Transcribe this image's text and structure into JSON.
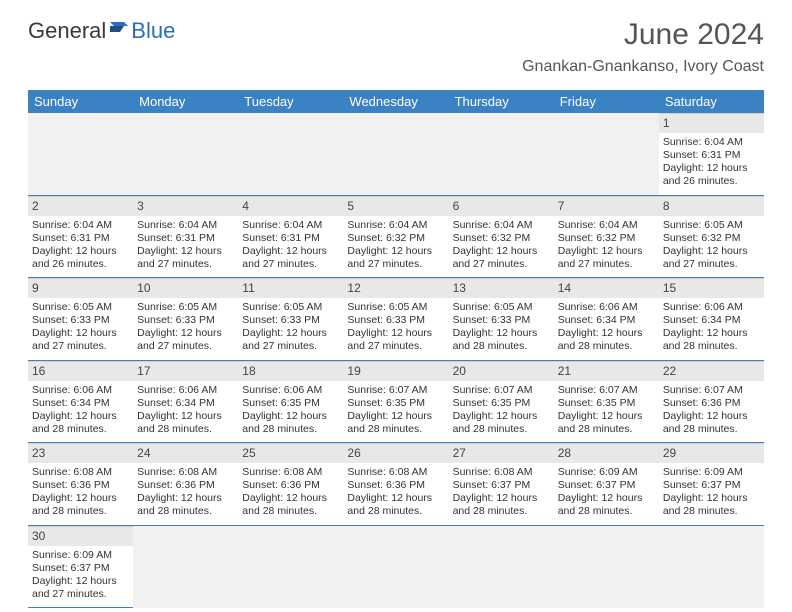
{
  "logo": {
    "general": "General",
    "blue": "Blue"
  },
  "title": {
    "month": "June 2024",
    "location": "Gnankan-Gnankanso, Ivory Coast"
  },
  "colors": {
    "header_bg": "#3b82c4",
    "header_text": "#ffffff",
    "daynum_bg": "#e8e8e8",
    "border": "#3b82c4",
    "text": "#333333",
    "logo_blue": "#2a6db8",
    "logo_gray": "#3a3a3a"
  },
  "typography": {
    "title_fontsize": 30,
    "location_fontsize": 16,
    "weekday_fontsize": 13,
    "daynum_fontsize": 12,
    "body_fontsize": 10.5
  },
  "weekdays": [
    "Sunday",
    "Monday",
    "Tuesday",
    "Wednesday",
    "Thursday",
    "Friday",
    "Saturday"
  ],
  "weeks": [
    [
      null,
      null,
      null,
      null,
      null,
      null,
      {
        "n": "1",
        "sr": "Sunrise: 6:04 AM",
        "ss": "Sunset: 6:31 PM",
        "d1": "Daylight: 12 hours",
        "d2": "and 26 minutes."
      }
    ],
    [
      {
        "n": "2",
        "sr": "Sunrise: 6:04 AM",
        "ss": "Sunset: 6:31 PM",
        "d1": "Daylight: 12 hours",
        "d2": "and 26 minutes."
      },
      {
        "n": "3",
        "sr": "Sunrise: 6:04 AM",
        "ss": "Sunset: 6:31 PM",
        "d1": "Daylight: 12 hours",
        "d2": "and 27 minutes."
      },
      {
        "n": "4",
        "sr": "Sunrise: 6:04 AM",
        "ss": "Sunset: 6:31 PM",
        "d1": "Daylight: 12 hours",
        "d2": "and 27 minutes."
      },
      {
        "n": "5",
        "sr": "Sunrise: 6:04 AM",
        "ss": "Sunset: 6:32 PM",
        "d1": "Daylight: 12 hours",
        "d2": "and 27 minutes."
      },
      {
        "n": "6",
        "sr": "Sunrise: 6:04 AM",
        "ss": "Sunset: 6:32 PM",
        "d1": "Daylight: 12 hours",
        "d2": "and 27 minutes."
      },
      {
        "n": "7",
        "sr": "Sunrise: 6:04 AM",
        "ss": "Sunset: 6:32 PM",
        "d1": "Daylight: 12 hours",
        "d2": "and 27 minutes."
      },
      {
        "n": "8",
        "sr": "Sunrise: 6:05 AM",
        "ss": "Sunset: 6:32 PM",
        "d1": "Daylight: 12 hours",
        "d2": "and 27 minutes."
      }
    ],
    [
      {
        "n": "9",
        "sr": "Sunrise: 6:05 AM",
        "ss": "Sunset: 6:33 PM",
        "d1": "Daylight: 12 hours",
        "d2": "and 27 minutes."
      },
      {
        "n": "10",
        "sr": "Sunrise: 6:05 AM",
        "ss": "Sunset: 6:33 PM",
        "d1": "Daylight: 12 hours",
        "d2": "and 27 minutes."
      },
      {
        "n": "11",
        "sr": "Sunrise: 6:05 AM",
        "ss": "Sunset: 6:33 PM",
        "d1": "Daylight: 12 hours",
        "d2": "and 27 minutes."
      },
      {
        "n": "12",
        "sr": "Sunrise: 6:05 AM",
        "ss": "Sunset: 6:33 PM",
        "d1": "Daylight: 12 hours",
        "d2": "and 27 minutes."
      },
      {
        "n": "13",
        "sr": "Sunrise: 6:05 AM",
        "ss": "Sunset: 6:33 PM",
        "d1": "Daylight: 12 hours",
        "d2": "and 28 minutes."
      },
      {
        "n": "14",
        "sr": "Sunrise: 6:06 AM",
        "ss": "Sunset: 6:34 PM",
        "d1": "Daylight: 12 hours",
        "d2": "and 28 minutes."
      },
      {
        "n": "15",
        "sr": "Sunrise: 6:06 AM",
        "ss": "Sunset: 6:34 PM",
        "d1": "Daylight: 12 hours",
        "d2": "and 28 minutes."
      }
    ],
    [
      {
        "n": "16",
        "sr": "Sunrise: 6:06 AM",
        "ss": "Sunset: 6:34 PM",
        "d1": "Daylight: 12 hours",
        "d2": "and 28 minutes."
      },
      {
        "n": "17",
        "sr": "Sunrise: 6:06 AM",
        "ss": "Sunset: 6:34 PM",
        "d1": "Daylight: 12 hours",
        "d2": "and 28 minutes."
      },
      {
        "n": "18",
        "sr": "Sunrise: 6:06 AM",
        "ss": "Sunset: 6:35 PM",
        "d1": "Daylight: 12 hours",
        "d2": "and 28 minutes."
      },
      {
        "n": "19",
        "sr": "Sunrise: 6:07 AM",
        "ss": "Sunset: 6:35 PM",
        "d1": "Daylight: 12 hours",
        "d2": "and 28 minutes."
      },
      {
        "n": "20",
        "sr": "Sunrise: 6:07 AM",
        "ss": "Sunset: 6:35 PM",
        "d1": "Daylight: 12 hours",
        "d2": "and 28 minutes."
      },
      {
        "n": "21",
        "sr": "Sunrise: 6:07 AM",
        "ss": "Sunset: 6:35 PM",
        "d1": "Daylight: 12 hours",
        "d2": "and 28 minutes."
      },
      {
        "n": "22",
        "sr": "Sunrise: 6:07 AM",
        "ss": "Sunset: 6:36 PM",
        "d1": "Daylight: 12 hours",
        "d2": "and 28 minutes."
      }
    ],
    [
      {
        "n": "23",
        "sr": "Sunrise: 6:08 AM",
        "ss": "Sunset: 6:36 PM",
        "d1": "Daylight: 12 hours",
        "d2": "and 28 minutes."
      },
      {
        "n": "24",
        "sr": "Sunrise: 6:08 AM",
        "ss": "Sunset: 6:36 PM",
        "d1": "Daylight: 12 hours",
        "d2": "and 28 minutes."
      },
      {
        "n": "25",
        "sr": "Sunrise: 6:08 AM",
        "ss": "Sunset: 6:36 PM",
        "d1": "Daylight: 12 hours",
        "d2": "and 28 minutes."
      },
      {
        "n": "26",
        "sr": "Sunrise: 6:08 AM",
        "ss": "Sunset: 6:36 PM",
        "d1": "Daylight: 12 hours",
        "d2": "and 28 minutes."
      },
      {
        "n": "27",
        "sr": "Sunrise: 6:08 AM",
        "ss": "Sunset: 6:37 PM",
        "d1": "Daylight: 12 hours",
        "d2": "and 28 minutes."
      },
      {
        "n": "28",
        "sr": "Sunrise: 6:09 AM",
        "ss": "Sunset: 6:37 PM",
        "d1": "Daylight: 12 hours",
        "d2": "and 28 minutes."
      },
      {
        "n": "29",
        "sr": "Sunrise: 6:09 AM",
        "ss": "Sunset: 6:37 PM",
        "d1": "Daylight: 12 hours",
        "d2": "and 28 minutes."
      }
    ],
    [
      {
        "n": "30",
        "sr": "Sunrise: 6:09 AM",
        "ss": "Sunset: 6:37 PM",
        "d1": "Daylight: 12 hours",
        "d2": "and 27 minutes."
      },
      null,
      null,
      null,
      null,
      null,
      null
    ]
  ]
}
